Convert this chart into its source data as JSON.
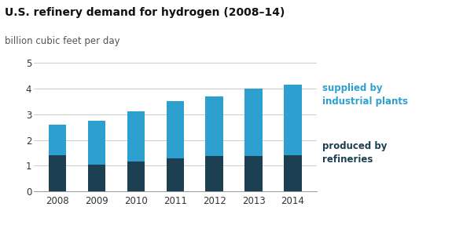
{
  "title": "U.S. refinery demand for hydrogen (2008–14)",
  "subtitle": "billion cubic feet per day",
  "years": [
    "2008",
    "2009",
    "2010",
    "2011",
    "2012",
    "2013",
    "2014"
  ],
  "produced_by_refineries": [
    1.4,
    1.05,
    1.15,
    1.27,
    1.38,
    1.38,
    1.4
  ],
  "supplied_by_industrial": [
    1.2,
    1.7,
    1.97,
    2.25,
    2.32,
    2.62,
    2.75
  ],
  "color_produced": "#1c3f52",
  "color_supplied": "#2da0d0",
  "ylim": [
    0,
    5
  ],
  "yticks": [
    0,
    1,
    2,
    3,
    4,
    5
  ],
  "legend_supplied": "supplied by\nindustrial plants",
  "legend_produced": "produced by\nrefineries",
  "background_color": "#ffffff",
  "grid_color": "#cccccc",
  "title_fontsize": 10,
  "subtitle_fontsize": 8.5,
  "tick_fontsize": 8.5,
  "legend_fontsize": 8.5,
  "legend_color_supplied": "#2da0d0",
  "legend_color_produced": "#1c3f52",
  "bar_width": 0.45
}
